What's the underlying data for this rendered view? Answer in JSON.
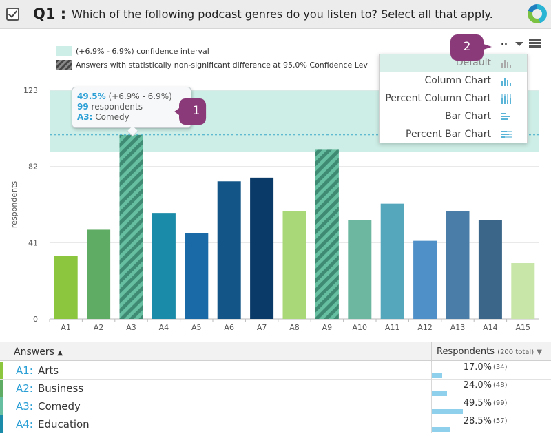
{
  "header": {
    "question_code": "Q1 :",
    "question_text": "Which of the following podcast genres do you listen to? Select all that apply.",
    "logo_icon": "survey-logo-icon"
  },
  "legend": {
    "ci_label": "(+6.9% - 6.9%) confidence interval",
    "nonsig_label": "Answers with statistically non-significant difference at 95.0% Confidence Lev"
  },
  "chart_data": {
    "type": "bar",
    "ylabel": "respondents",
    "ylim": [
      0,
      123
    ],
    "yticks": [
      0,
      41,
      82,
      123
    ],
    "categories": [
      "A1",
      "A2",
      "A3",
      "A4",
      "A5",
      "A6",
      "A7",
      "A8",
      "A9",
      "A10",
      "A11",
      "A12",
      "A13",
      "A14",
      "A15"
    ],
    "values": [
      34,
      48,
      99,
      57,
      46,
      74,
      76,
      58,
      91,
      53,
      62,
      42,
      58,
      53,
      30
    ],
    "colors": [
      "#8cc63f",
      "#5fac64",
      "#66bfa0",
      "#1a8ba8",
      "#1a6aa8",
      "#135587",
      "#0a3a67",
      "#a8d878",
      "#66bfa0",
      "#6db6a0",
      "#55a8bc",
      "#4f90c8",
      "#4a7ea8",
      "#3b6589",
      "#c8e6a8"
    ],
    "hatched": [
      "A3",
      "A9"
    ],
    "ci_band": [
      90,
      123
    ],
    "reference_line": 99,
    "colors_accent": {
      "ci_band": "#cdeee6",
      "reference": "#3aa8c8"
    }
  },
  "tooltip": {
    "pct": "49.5%",
    "ci": "(+6.9% - 6.9%)",
    "count": "99",
    "count_label": "respondents",
    "answer_code": "A3:",
    "answer_name": "Comedy"
  },
  "callouts": {
    "one": "1",
    "two": "2"
  },
  "toolbar": {
    "dots": "..",
    "menu_icon": "hamburger-menu-icon",
    "caret_icon": "caret-down-icon"
  },
  "dropdown": {
    "items": [
      {
        "label": "Default",
        "icon": "default-chart-icon"
      },
      {
        "label": "Column Chart",
        "icon": "column-chart-icon"
      },
      {
        "label": "Percent Column Chart",
        "icon": "percent-column-chart-icon"
      },
      {
        "label": "Bar Chart",
        "icon": "bar-chart-icon"
      },
      {
        "label": "Percent Bar Chart",
        "icon": "percent-bar-chart-icon"
      }
    ]
  },
  "table": {
    "col_answers": "Answers",
    "col_respondents": "Respondents",
    "col_total": "(200 total)",
    "rows": [
      {
        "code": "A1:",
        "name": "Arts",
        "pct": "17.0%",
        "count": "(34)",
        "pct_value": 17.0,
        "color": "#8cc63f"
      },
      {
        "code": "A2:",
        "name": "Business",
        "pct": "24.0%",
        "count": "(48)",
        "pct_value": 24.0,
        "color": "#5fac64"
      },
      {
        "code": "A3:",
        "name": "Comedy",
        "pct": "49.5%",
        "count": "(99)",
        "pct_value": 49.5,
        "color": "#66bfa0"
      },
      {
        "code": "A4:",
        "name": "Education",
        "pct": "28.5%",
        "count": "(57)",
        "pct_value": 28.5,
        "color": "#1a8ba8"
      }
    ]
  }
}
